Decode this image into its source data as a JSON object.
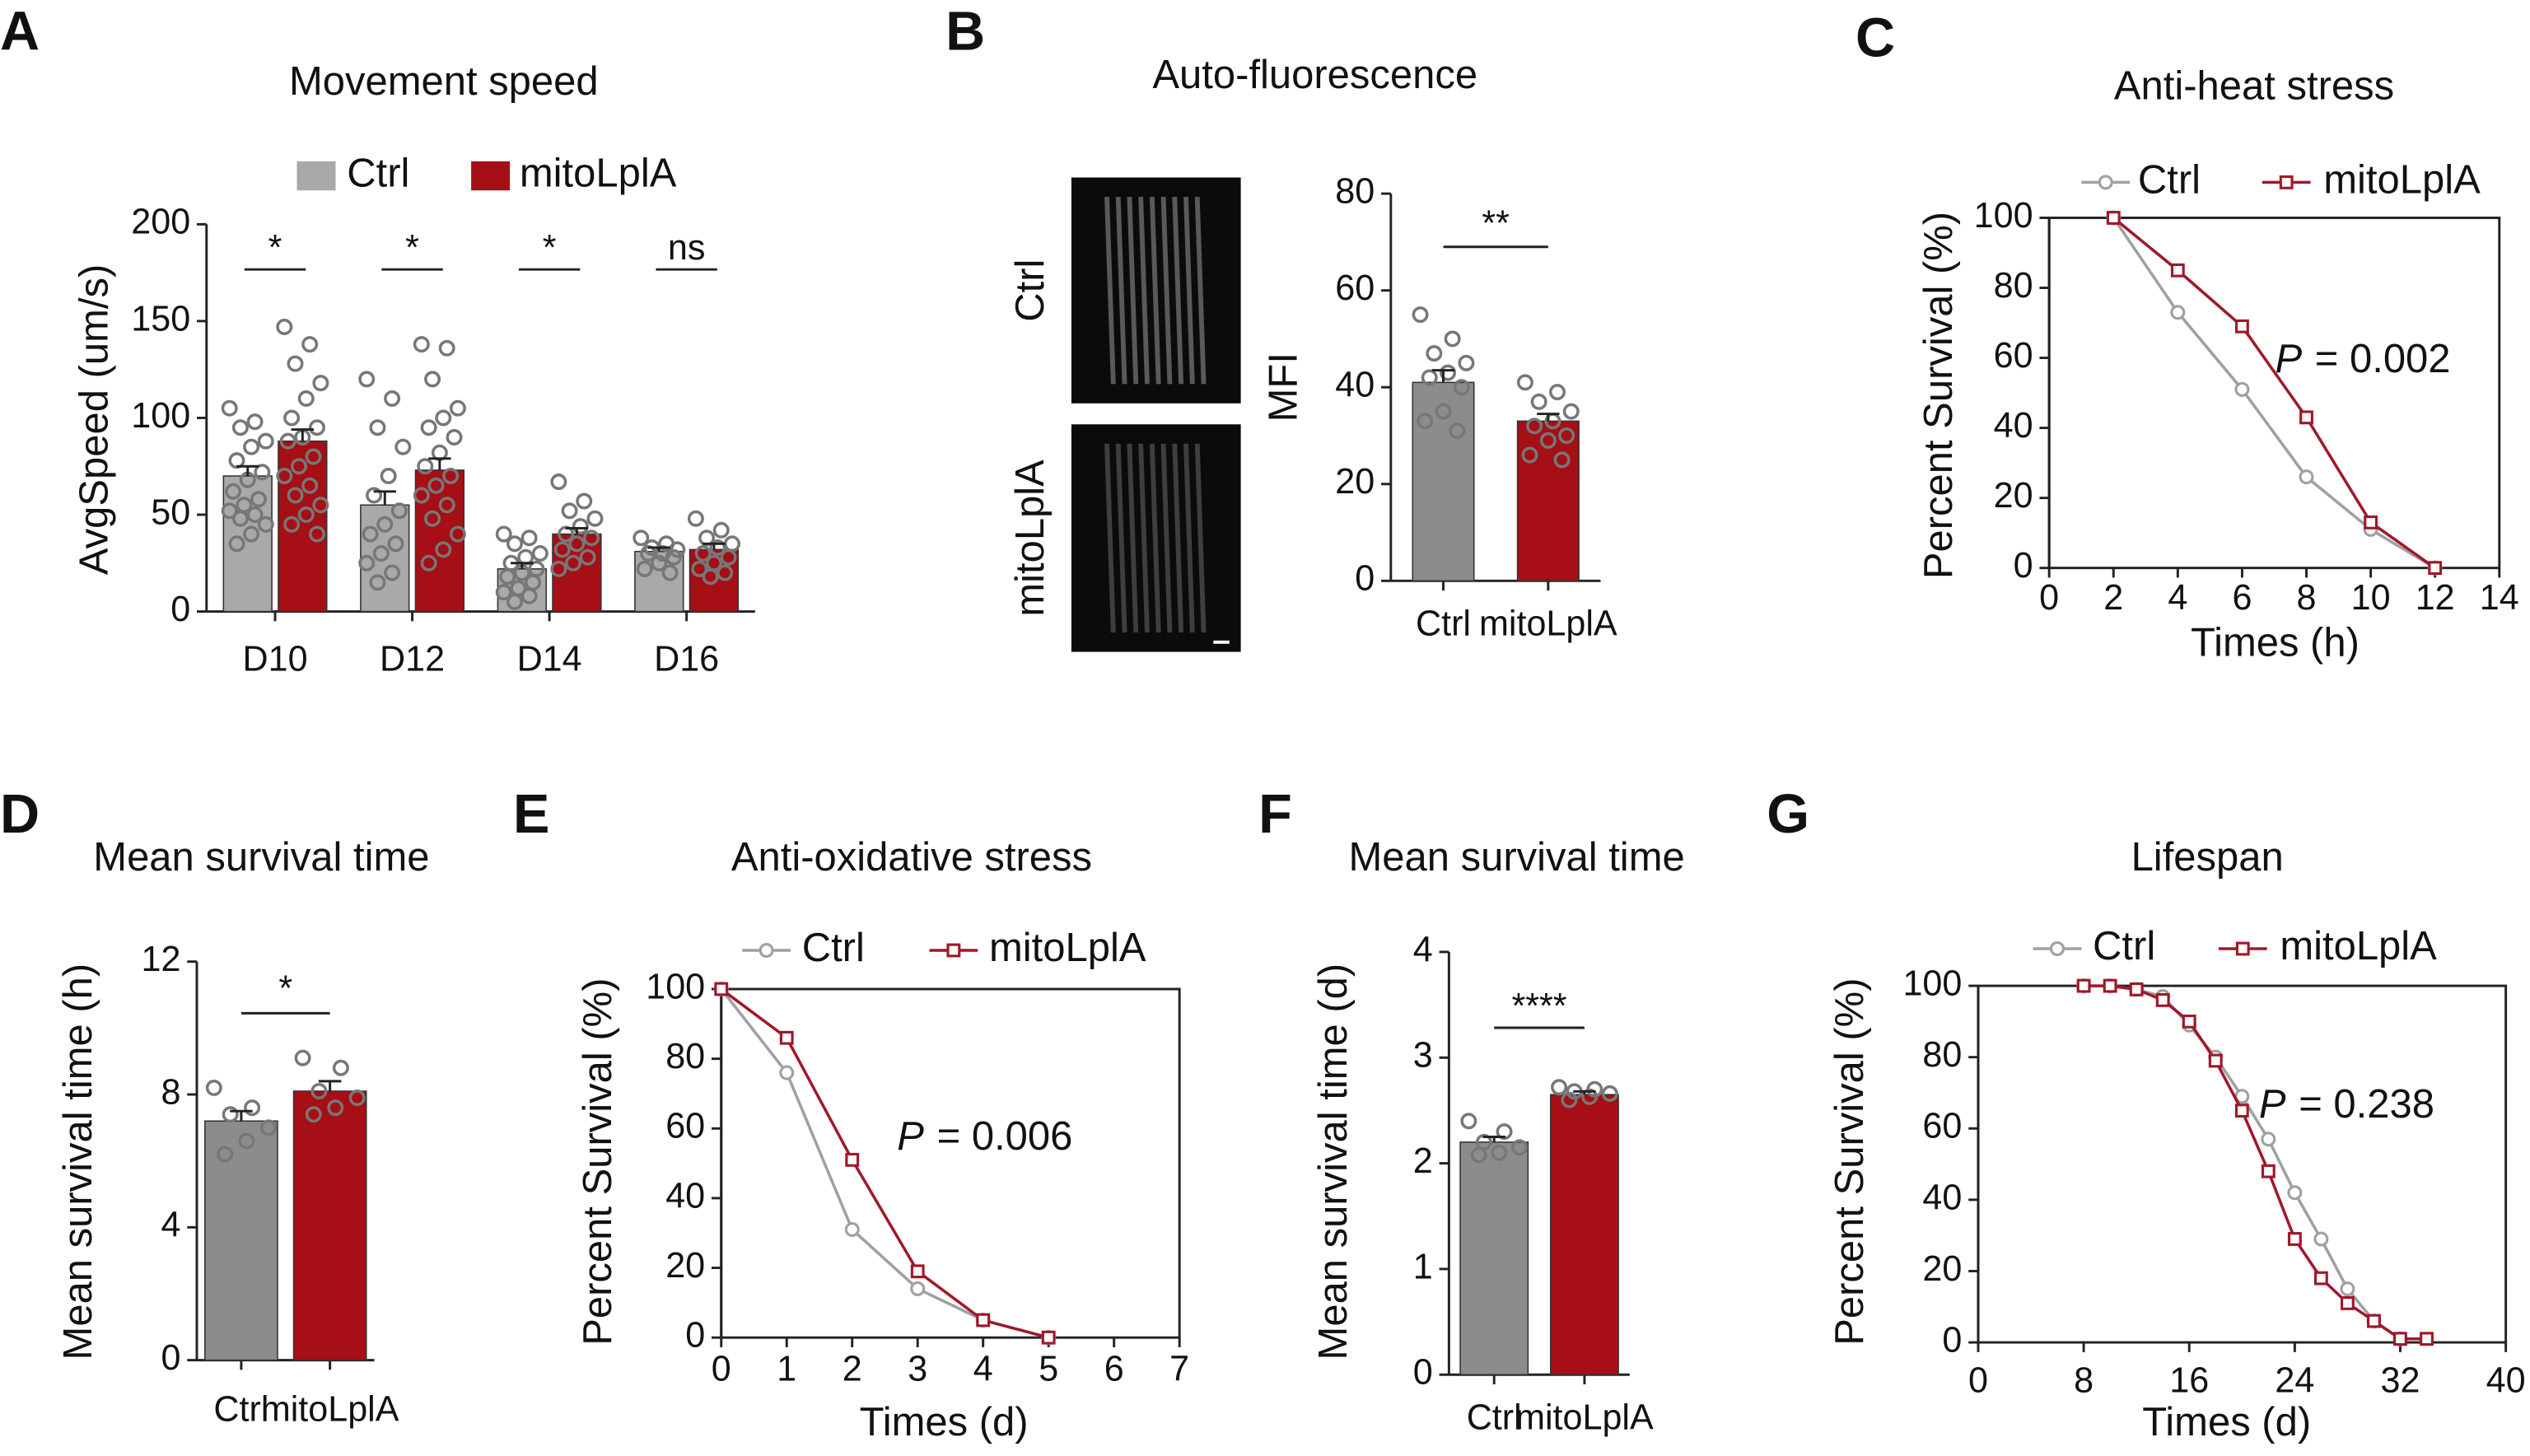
{
  "chart_data": [
    {
      "type": "bar",
      "panel": "A",
      "title": "Movement speed",
      "ylabel": "AvgSpeed (um/s)",
      "categories": [
        "D10",
        "D12",
        "D14",
        "D16"
      ],
      "series": [
        {
          "name": "Ctrl",
          "color": "#a9a9a9",
          "values": [
            70,
            55,
            22,
            31
          ],
          "errors": [
            5,
            7,
            3,
            2
          ],
          "points": [
            [
              105,
              98,
              95,
              88,
              85,
              78,
              72,
              68,
              62,
              58,
              55,
              52,
              50,
              48,
              45,
              40,
              35
            ],
            [
              120,
              110,
              95,
              85,
              70,
              60,
              52,
              45,
              40,
              35,
              30,
              25,
              20,
              15
            ],
            [
              40,
              38,
              35,
              30,
              28,
              25,
              22,
              20,
              18,
              15,
              12,
              10,
              8,
              5
            ],
            [
              38,
              35,
              33,
              32,
              30,
              30,
              28,
              25,
              22,
              20
            ]
          ]
        },
        {
          "name": "mitoLplA",
          "color": "#a50f15",
          "values": [
            88,
            73,
            40,
            32
          ],
          "errors": [
            6,
            6,
            3,
            3
          ],
          "points": [
            [
              147,
              138,
              128,
              118,
              110,
              100,
              95,
              90,
              88,
              80,
              75,
              70,
              65,
              60,
              55,
              50,
              45,
              40
            ],
            [
              138,
              136,
              120,
              105,
              100,
              95,
              90,
              82,
              75,
              70,
              65,
              60,
              55,
              48,
              40,
              32,
              25
            ],
            [
              67,
              57,
              52,
              48,
              44,
              40,
              38,
              35,
              32,
              28,
              25,
              22
            ],
            [
              48,
              42,
              38,
              35,
              33,
              30,
              28,
              25,
              22,
              20,
              18
            ]
          ]
        }
      ],
      "significance": [
        "*",
        "*",
        "*",
        "ns"
      ],
      "ylim": [
        0,
        200
      ],
      "yticks": [
        0,
        50,
        100,
        150,
        200
      ]
    },
    {
      "type": "bar",
      "panel": "B",
      "title": "Auto-fluorescence",
      "ylabel": "MFI",
      "image_labels": [
        "Ctrl",
        "mitoLplA"
      ],
      "categories": [
        "Ctrl",
        "mitoLplA"
      ],
      "colors": [
        "#8c8c8c",
        "#a50f15"
      ],
      "values": [
        41,
        33
      ],
      "errors": [
        2.5,
        1.5
      ],
      "points": [
        [
          55,
          50,
          47,
          45,
          43,
          42,
          40,
          35,
          33,
          31
        ],
        [
          41,
          39,
          37,
          35,
          33,
          32,
          30,
          29,
          26,
          25
        ]
      ],
      "significance": "**",
      "ylim": [
        0,
        80
      ],
      "yticks": [
        0,
        20,
        40,
        60,
        80
      ]
    },
    {
      "type": "line",
      "panel": "C",
      "title": "Anti-heat stress",
      "ylabel": "Percent Survival (%)",
      "xlabel": "Times (h)",
      "x": [
        2,
        4,
        6,
        8,
        10,
        12
      ],
      "series": [
        {
          "name": "Ctrl",
          "color": "#a0a0a0",
          "marker": "circle",
          "values": [
            100,
            73,
            51,
            26,
            11,
            0
          ]
        },
        {
          "name": "mitoLplA",
          "color": "#a0182a",
          "marker": "square",
          "values": [
            100,
            85,
            69,
            43,
            13,
            0
          ]
        }
      ],
      "annotation": {
        "italic": "P",
        "text": "= 0.002"
      },
      "xlim": [
        0,
        14
      ],
      "xticks": [
        0,
        2,
        4,
        6,
        8,
        10,
        12,
        14
      ],
      "ylim": [
        0,
        100
      ],
      "yticks": [
        0,
        20,
        40,
        60,
        80,
        100
      ]
    },
    {
      "type": "bar",
      "panel": "D",
      "title": "Mean survival time",
      "ylabel": "Mean survival time (h)",
      "categories": [
        "Ctrl",
        "mitoLplA"
      ],
      "colors": [
        "#8c8c8c",
        "#a50f15"
      ],
      "values": [
        7.2,
        8.1
      ],
      "errors": [
        0.3,
        0.3
      ],
      "points": [
        [
          8.2,
          7.6,
          7.4,
          7.0,
          6.6,
          6.2
        ],
        [
          9.1,
          8.8,
          8.1,
          7.9,
          7.6,
          7.4
        ]
      ],
      "significance": "*",
      "ylim": [
        0,
        12
      ],
      "yticks": [
        0,
        4,
        8,
        12
      ]
    },
    {
      "type": "line",
      "panel": "E",
      "title": "Anti-oxidative stress",
      "ylabel": "Percent Survival (%)",
      "xlabel": "Times (d)",
      "x": [
        0,
        1,
        2,
        3,
        4,
        5
      ],
      "series": [
        {
          "name": "Ctrl",
          "color": "#a0a0a0",
          "marker": "circle",
          "values": [
            100,
            76,
            31,
            14,
            5,
            0
          ]
        },
        {
          "name": "mitoLplA",
          "color": "#a0182a",
          "marker": "square",
          "values": [
            100,
            86,
            51,
            19,
            5,
            0
          ]
        }
      ],
      "annotation": {
        "italic": "P",
        "text": "= 0.006"
      },
      "xlim": [
        0,
        7
      ],
      "xticks": [
        0,
        1,
        2,
        3,
        4,
        5,
        6,
        7
      ],
      "ylim": [
        0,
        100
      ],
      "yticks": [
        0,
        20,
        40,
        60,
        80,
        100
      ]
    },
    {
      "type": "bar",
      "panel": "F",
      "title": "Mean survival time",
      "ylabel": "Mean survival time (d)",
      "categories": [
        "Ctrl",
        "mitoLplA"
      ],
      "colors": [
        "#8c8c8c",
        "#a50f15"
      ],
      "values": [
        2.2,
        2.65
      ],
      "errors": [
        0.05,
        0.03
      ],
      "points": [
        [
          2.4,
          2.3,
          2.2,
          2.15,
          2.1,
          2.08
        ],
        [
          2.72,
          2.7,
          2.68,
          2.66,
          2.63,
          2.6
        ]
      ],
      "significance": "****",
      "ylim": [
        0,
        4
      ],
      "yticks": [
        0,
        1,
        2,
        3,
        4
      ]
    },
    {
      "type": "line",
      "panel": "G",
      "title": "Lifespan",
      "ylabel": "Percent Survival (%)",
      "xlabel": "Times (d)",
      "x": [
        8,
        10,
        12,
        14,
        16,
        18,
        20,
        22,
        24,
        26,
        28,
        30,
        32,
        34
      ],
      "series": [
        {
          "name": "Ctrl",
          "color": "#a0a0a0",
          "marker": "circle",
          "values": [
            100,
            100,
            99,
            97,
            89,
            80,
            69,
            57,
            42,
            29,
            15,
            6,
            1,
            null
          ]
        },
        {
          "name": "mitoLplA",
          "color": "#a0182a",
          "marker": "square",
          "values": [
            100,
            100,
            99,
            96,
            90,
            79,
            65,
            48,
            29,
            18,
            11,
            6,
            1,
            1
          ]
        }
      ],
      "annotation": {
        "italic": "P",
        "text": "= 0.238"
      },
      "xlim": [
        0,
        40
      ],
      "xticks": [
        0,
        8,
        16,
        24,
        32,
        40
      ],
      "ylim": [
        0,
        100
      ],
      "yticks": [
        0,
        20,
        40,
        60,
        80,
        100
      ]
    }
  ]
}
